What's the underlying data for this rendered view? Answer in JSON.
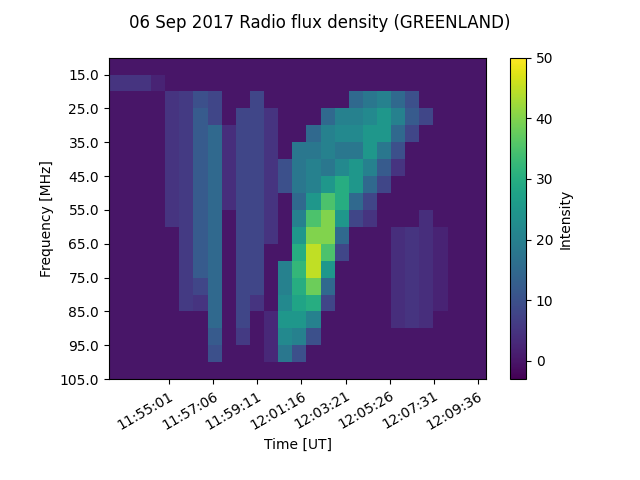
{
  "chart_data": {
    "type": "heatmap",
    "title": "06 Sep 2017 Radio flux density (GREENLAND)",
    "x_label": "Time [UT]",
    "y_label": "Frequency [MHz]",
    "color": "viridis",
    "xlim": [
      42730,
      43800
    ],
    "xticks": [
      {
        "value": 42901,
        "label": "11:55:01"
      },
      {
        "value": 43026,
        "label": "11:57:06"
      },
      {
        "value": 43151,
        "label": "11:59:11"
      },
      {
        "value": 43276,
        "label": "12:01:16"
      },
      {
        "value": 43401,
        "label": "12:03:21"
      },
      {
        "value": 43526,
        "label": "12:05:26"
      },
      {
        "value": 43651,
        "label": "12:07:31"
      },
      {
        "value": 43776,
        "label": "12:09:36"
      }
    ],
    "ylim": [
      105,
      10
    ],
    "yticks": [
      {
        "value": 15,
        "label": "15.0"
      },
      {
        "value": 25,
        "label": "25.0"
      },
      {
        "value": 35,
        "label": "35.0"
      },
      {
        "value": 45,
        "label": "45.0"
      },
      {
        "value": 55,
        "label": "55.0"
      },
      {
        "value": 65,
        "label": "65.0"
      },
      {
        "value": 75,
        "label": "75.0"
      },
      {
        "value": 85,
        "label": "85.0"
      },
      {
        "value": 95,
        "label": "95.0"
      },
      {
        "value": 105,
        "label": "105.0"
      }
    ],
    "colorbar_label": "Intensity",
    "colorbar_lim": [
      -3,
      50
    ],
    "colorbar_ticks": [
      0,
      10,
      20,
      30,
      40,
      50
    ],
    "cells": {
      "x_edges": [
        42730,
        42770,
        42810,
        42850,
        42890,
        42930,
        42970,
        43010,
        43050,
        43090,
        43130,
        43170,
        43210,
        43250,
        43290,
        43330,
        43370,
        43410,
        43450,
        43490,
        43530,
        43570,
        43610,
        43650,
        43690,
        43730,
        43770,
        43810
      ],
      "y_edges": [
        10,
        15,
        20,
        25,
        30,
        35,
        40,
        45,
        50,
        55,
        60,
        65,
        70,
        75,
        80,
        85,
        90,
        95,
        100,
        105
      ],
      "values": [
        [
          0,
          0,
          0,
          0,
          0,
          0,
          0,
          0,
          0,
          0,
          0,
          0,
          0,
          0,
          0,
          0,
          0,
          0,
          0,
          0,
          0,
          0,
          0,
          0,
          0,
          0,
          0
        ],
        [
          5,
          5,
          5,
          2,
          0,
          0,
          0,
          0,
          0,
          0,
          0,
          0,
          0,
          0,
          0,
          0,
          0,
          0,
          0,
          0,
          0,
          0,
          0,
          0,
          0,
          0,
          0
        ],
        [
          0,
          0,
          0,
          0,
          5,
          6,
          10,
          8,
          0,
          0,
          8,
          0,
          0,
          0,
          0,
          0,
          0,
          15,
          18,
          20,
          15,
          10,
          0,
          0,
          0,
          0,
          0
        ],
        [
          0,
          0,
          0,
          0,
          5,
          6,
          12,
          8,
          0,
          8,
          8,
          5,
          0,
          0,
          0,
          15,
          20,
          20,
          22,
          25,
          20,
          12,
          8,
          0,
          0,
          0,
          0
        ],
        [
          0,
          0,
          0,
          0,
          5,
          6,
          12,
          15,
          4,
          8,
          8,
          5,
          0,
          0,
          15,
          20,
          22,
          22,
          25,
          25,
          15,
          8,
          0,
          0,
          0,
          0,
          0
        ],
        [
          0,
          0,
          0,
          0,
          5,
          6,
          12,
          15,
          4,
          8,
          8,
          5,
          0,
          18,
          18,
          20,
          18,
          18,
          25,
          18,
          10,
          0,
          0,
          0,
          0,
          0,
          0
        ],
        [
          0,
          0,
          0,
          0,
          5,
          6,
          12,
          15,
          4,
          8,
          8,
          5,
          10,
          18,
          20,
          18,
          22,
          25,
          20,
          12,
          5,
          0,
          0,
          0,
          0,
          0,
          0
        ],
        [
          0,
          0,
          0,
          0,
          5,
          6,
          12,
          15,
          4,
          8,
          8,
          5,
          10,
          18,
          20,
          25,
          30,
          25,
          15,
          8,
          0,
          0,
          0,
          0,
          0,
          0,
          0
        ],
        [
          0,
          0,
          0,
          0,
          5,
          6,
          12,
          15,
          4,
          8,
          8,
          5,
          0,
          15,
          25,
          35,
          30,
          15,
          8,
          0,
          0,
          0,
          0,
          0,
          0,
          0,
          0
        ],
        [
          0,
          0,
          0,
          0,
          5,
          6,
          12,
          15,
          0,
          8,
          8,
          5,
          0,
          20,
          35,
          40,
          25,
          8,
          5,
          0,
          0,
          0,
          4,
          0,
          0,
          0,
          0
        ],
        [
          0,
          0,
          0,
          0,
          0,
          6,
          12,
          15,
          0,
          8,
          8,
          5,
          0,
          25,
          40,
          40,
          15,
          0,
          0,
          0,
          4,
          5,
          4,
          2,
          0,
          0,
          0
        ],
        [
          0,
          0,
          0,
          0,
          0,
          6,
          12,
          15,
          0,
          8,
          8,
          0,
          0,
          30,
          45,
          35,
          8,
          0,
          0,
          0,
          4,
          5,
          4,
          2,
          0,
          0,
          0
        ],
        [
          0,
          0,
          0,
          0,
          0,
          6,
          12,
          15,
          0,
          8,
          8,
          0,
          20,
          32,
          45,
          25,
          0,
          0,
          0,
          0,
          4,
          5,
          4,
          2,
          0,
          0,
          0
        ],
        [
          0,
          0,
          0,
          0,
          0,
          6,
          8,
          15,
          0,
          8,
          8,
          0,
          20,
          30,
          38,
          15,
          0,
          0,
          0,
          0,
          4,
          5,
          4,
          2,
          0,
          0,
          0
        ],
        [
          0,
          0,
          0,
          0,
          0,
          6,
          5,
          15,
          0,
          8,
          5,
          0,
          22,
          28,
          30,
          8,
          0,
          0,
          0,
          0,
          4,
          5,
          4,
          2,
          0,
          0,
          0
        ],
        [
          0,
          0,
          0,
          0,
          0,
          0,
          0,
          15,
          0,
          8,
          0,
          3,
          25,
          25,
          20,
          0,
          0,
          0,
          0,
          0,
          4,
          5,
          4,
          0,
          0,
          0,
          0
        ],
        [
          0,
          0,
          0,
          0,
          0,
          0,
          0,
          12,
          0,
          6,
          0,
          3,
          22,
          20,
          10,
          0,
          0,
          0,
          0,
          0,
          0,
          0,
          0,
          0,
          0,
          0,
          0
        ],
        [
          0,
          0,
          0,
          0,
          0,
          0,
          0,
          10,
          0,
          0,
          0,
          3,
          18,
          10,
          0,
          0,
          0,
          0,
          0,
          0,
          0,
          0,
          0,
          0,
          0,
          0,
          0
        ],
        [
          0,
          0,
          0,
          0,
          0,
          0,
          0,
          0,
          0,
          0,
          0,
          0,
          0,
          0,
          0,
          0,
          0,
          0,
          0,
          0,
          0,
          0,
          0,
          0,
          0,
          0,
          0
        ]
      ]
    }
  }
}
